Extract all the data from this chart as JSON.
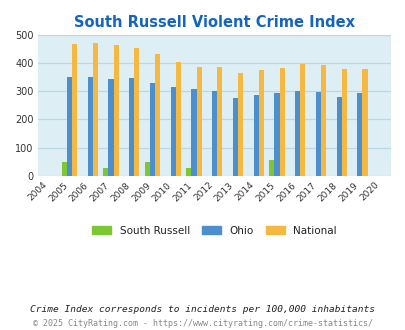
{
  "title": "South Russell Violent Crime Index",
  "tick_years": [
    2004,
    2005,
    2006,
    2007,
    2008,
    2009,
    2010,
    2011,
    2012,
    2013,
    2014,
    2015,
    2016,
    2017,
    2018,
    2019,
    2020
  ],
  "bar_years": [
    2005,
    2006,
    2007,
    2008,
    2009,
    2010,
    2011,
    2012,
    2013,
    2014,
    2015,
    2016,
    2017,
    2018,
    2019
  ],
  "south_russell": [
    50,
    0,
    27,
    0,
    50,
    0,
    27,
    0,
    0,
    0,
    55,
    0,
    0,
    0,
    0
  ],
  "ohio": [
    350,
    350,
    345,
    348,
    330,
    315,
    308,
    300,
    278,
    288,
    294,
    300,
    298,
    281,
    293
  ],
  "national": [
    469,
    474,
    467,
    455,
    432,
    405,
    388,
    387,
    367,
    378,
    383,
    398,
    394,
    381,
    380
  ],
  "south_russell_color": "#7dc832",
  "ohio_color": "#4d8fcc",
  "national_color": "#f5b942",
  "bg_color": "#ddeef4",
  "ylim": [
    0,
    500
  ],
  "yticks": [
    0,
    100,
    200,
    300,
    400,
    500
  ],
  "title_color": "#1565c0",
  "title_fontsize": 10.5,
  "legend_labels": [
    "South Russell",
    "Ohio",
    "National"
  ],
  "footnote1": "Crime Index corresponds to incidents per 100,000 inhabitants",
  "footnote2": "© 2025 CityRating.com - https://www.cityrating.com/crime-statistics/",
  "footnote1_color": "#222222",
  "footnote2_color": "#888888",
  "bar_width": 0.25,
  "grid_color": "#b8d8e8"
}
